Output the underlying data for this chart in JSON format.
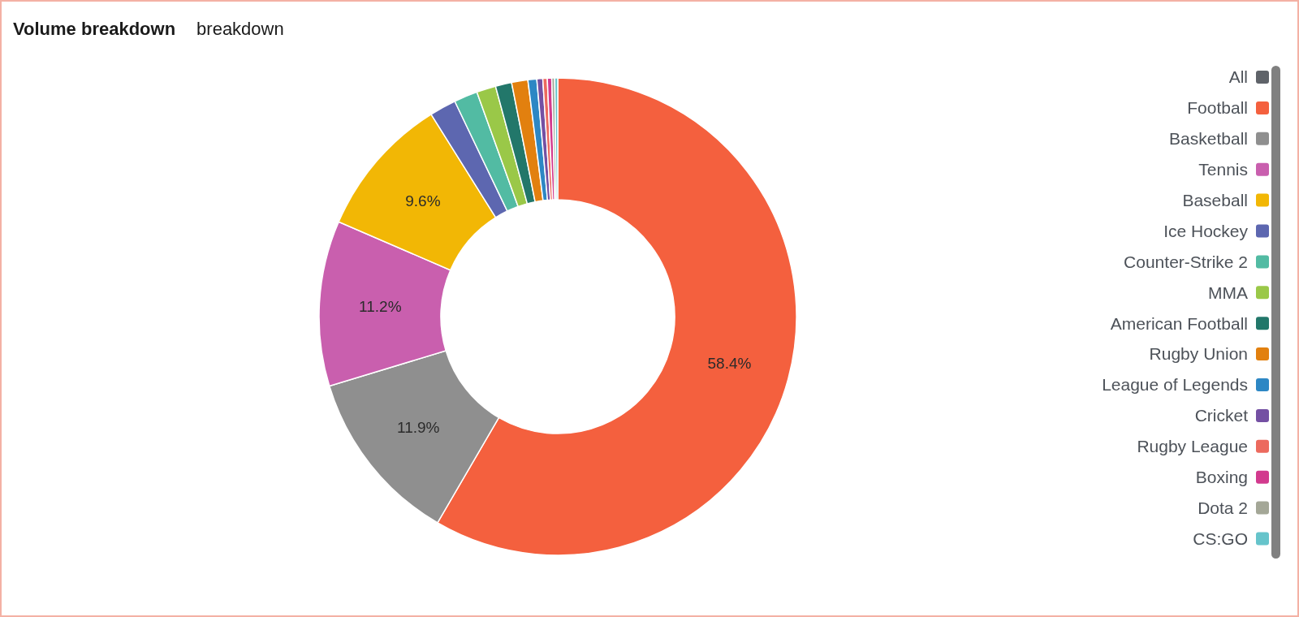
{
  "chart_data": {
    "type": "donut",
    "title": "Volume breakdown",
    "subtitle": "breakdown",
    "categories": [
      "All",
      "Football",
      "Basketball",
      "Tennis",
      "Baseball",
      "Ice Hockey",
      "Counter-Strike 2",
      "MMA",
      "American Football",
      "Rugby Union",
      "League of Legends",
      "Cricket",
      "Rugby League",
      "Boxing",
      "Dota 2",
      "CS:GO"
    ],
    "values": [
      0,
      58.4,
      11.9,
      11.2,
      9.6,
      1.8,
      1.6,
      1.3,
      1.1,
      1.1,
      0.6,
      0.4,
      0.3,
      0.3,
      0.2,
      0.2
    ],
    "colors": [
      "#5f6369",
      "#f4603e",
      "#8f8f8f",
      "#c95fae",
      "#f2b705",
      "#5d67b0",
      "#52bba3",
      "#9ac848",
      "#22776a",
      "#e2800f",
      "#2d87c4",
      "#7450a3",
      "#ec6a5e",
      "#d23a8e",
      "#a4a797",
      "#66c4cb"
    ],
    "value_labels": [
      null,
      "58.4%",
      "11.9%",
      "11.2%",
      "9.6%",
      null,
      null,
      null,
      null,
      null,
      null,
      null,
      null,
      null,
      null,
      null
    ],
    "legend": "right"
  }
}
